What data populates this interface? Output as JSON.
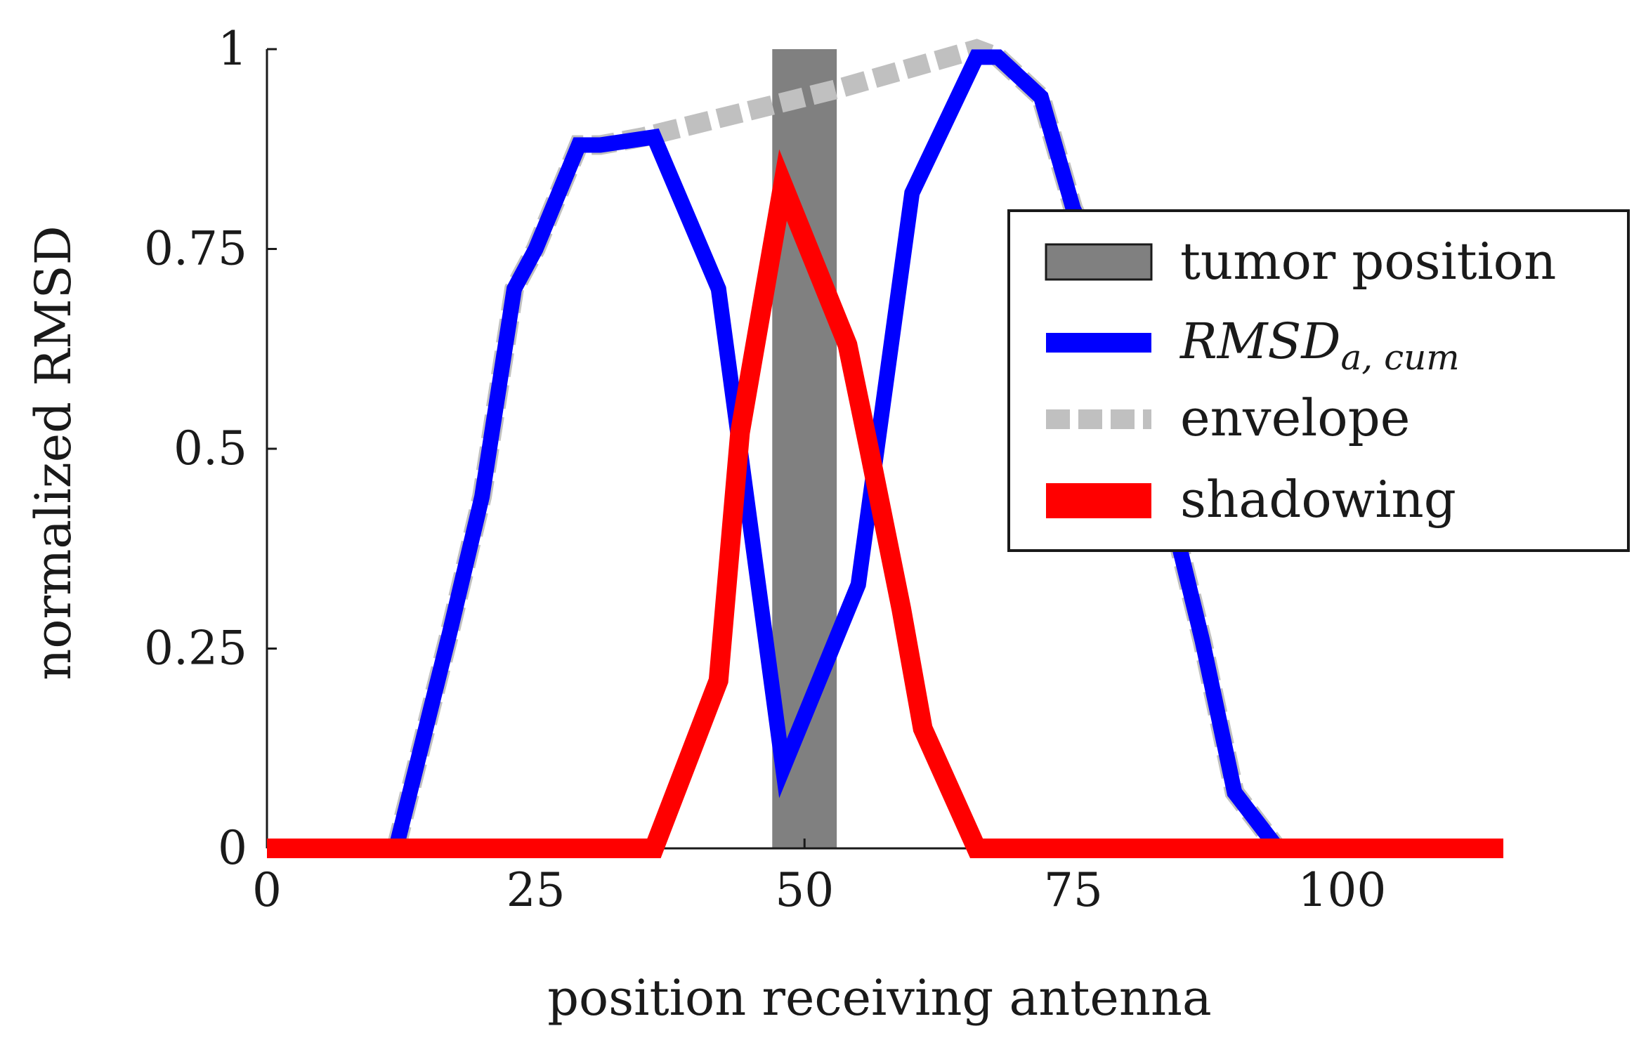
{
  "chart_data": {
    "type": "line",
    "xlabel": "position receiving antenna",
    "ylabel": "normalized RMSD",
    "xlim": [
      0,
      115
    ],
    "ylim": [
      0,
      1
    ],
    "xticks": [
      0,
      25,
      50,
      75,
      100
    ],
    "yticks": [
      0,
      0.25,
      0.5,
      0.75,
      1
    ],
    "xtick_labels": [
      "0",
      "25",
      "50",
      "75",
      "100"
    ],
    "ytick_labels": [
      "0",
      "0.25",
      "0.5",
      "0.75",
      "1"
    ],
    "grid": false,
    "legend_position": "right",
    "tumor_position": {
      "name": "tumor position",
      "x_start": 47,
      "x_end": 53,
      "color": "#808080"
    },
    "series": [
      {
        "name": "envelope",
        "color": "#c0c0c0",
        "style": "dashed",
        "x": [
          12,
          17,
          20,
          23,
          25,
          29,
          31,
          35,
          47,
          53,
          66,
          68,
          72,
          75,
          78,
          80,
          85,
          87,
          90,
          94
        ],
        "y": [
          0,
          0.27,
          0.44,
          0.7,
          0.75,
          0.88,
          0.88,
          0.89,
          0.93,
          0.95,
          1.0,
          0.99,
          0.94,
          0.8,
          0.72,
          0.66,
          0.37,
          0.26,
          0.07,
          0
        ]
      },
      {
        "name": "RMSD_{a,cum}",
        "label_main": "RMSD",
        "label_sub": "a, cum",
        "color": "#0000ff",
        "style": "solid",
        "x": [
          12,
          17,
          20,
          23,
          25,
          29,
          31,
          36,
          42,
          48,
          55,
          60,
          66,
          68,
          72,
          75,
          78,
          80,
          85,
          87,
          90,
          94
        ],
        "y": [
          0,
          0.27,
          0.44,
          0.7,
          0.75,
          0.88,
          0.88,
          0.89,
          0.7,
          0.1,
          0.33,
          0.82,
          0.99,
          0.99,
          0.94,
          0.8,
          0.72,
          0.66,
          0.37,
          0.26,
          0.07,
          0
        ]
      },
      {
        "name": "shadowing",
        "color": "#ff0000",
        "style": "solid",
        "x": [
          0,
          36,
          42,
          44,
          48,
          54,
          56,
          59,
          61,
          66,
          115
        ],
        "y": [
          0,
          0,
          0.21,
          0.52,
          0.83,
          0.63,
          0.5,
          0.3,
          0.15,
          0,
          0
        ]
      }
    ],
    "legend": [
      "tumor position",
      "RMSD_{a,cum}",
      "envelope",
      "shadowing"
    ]
  }
}
